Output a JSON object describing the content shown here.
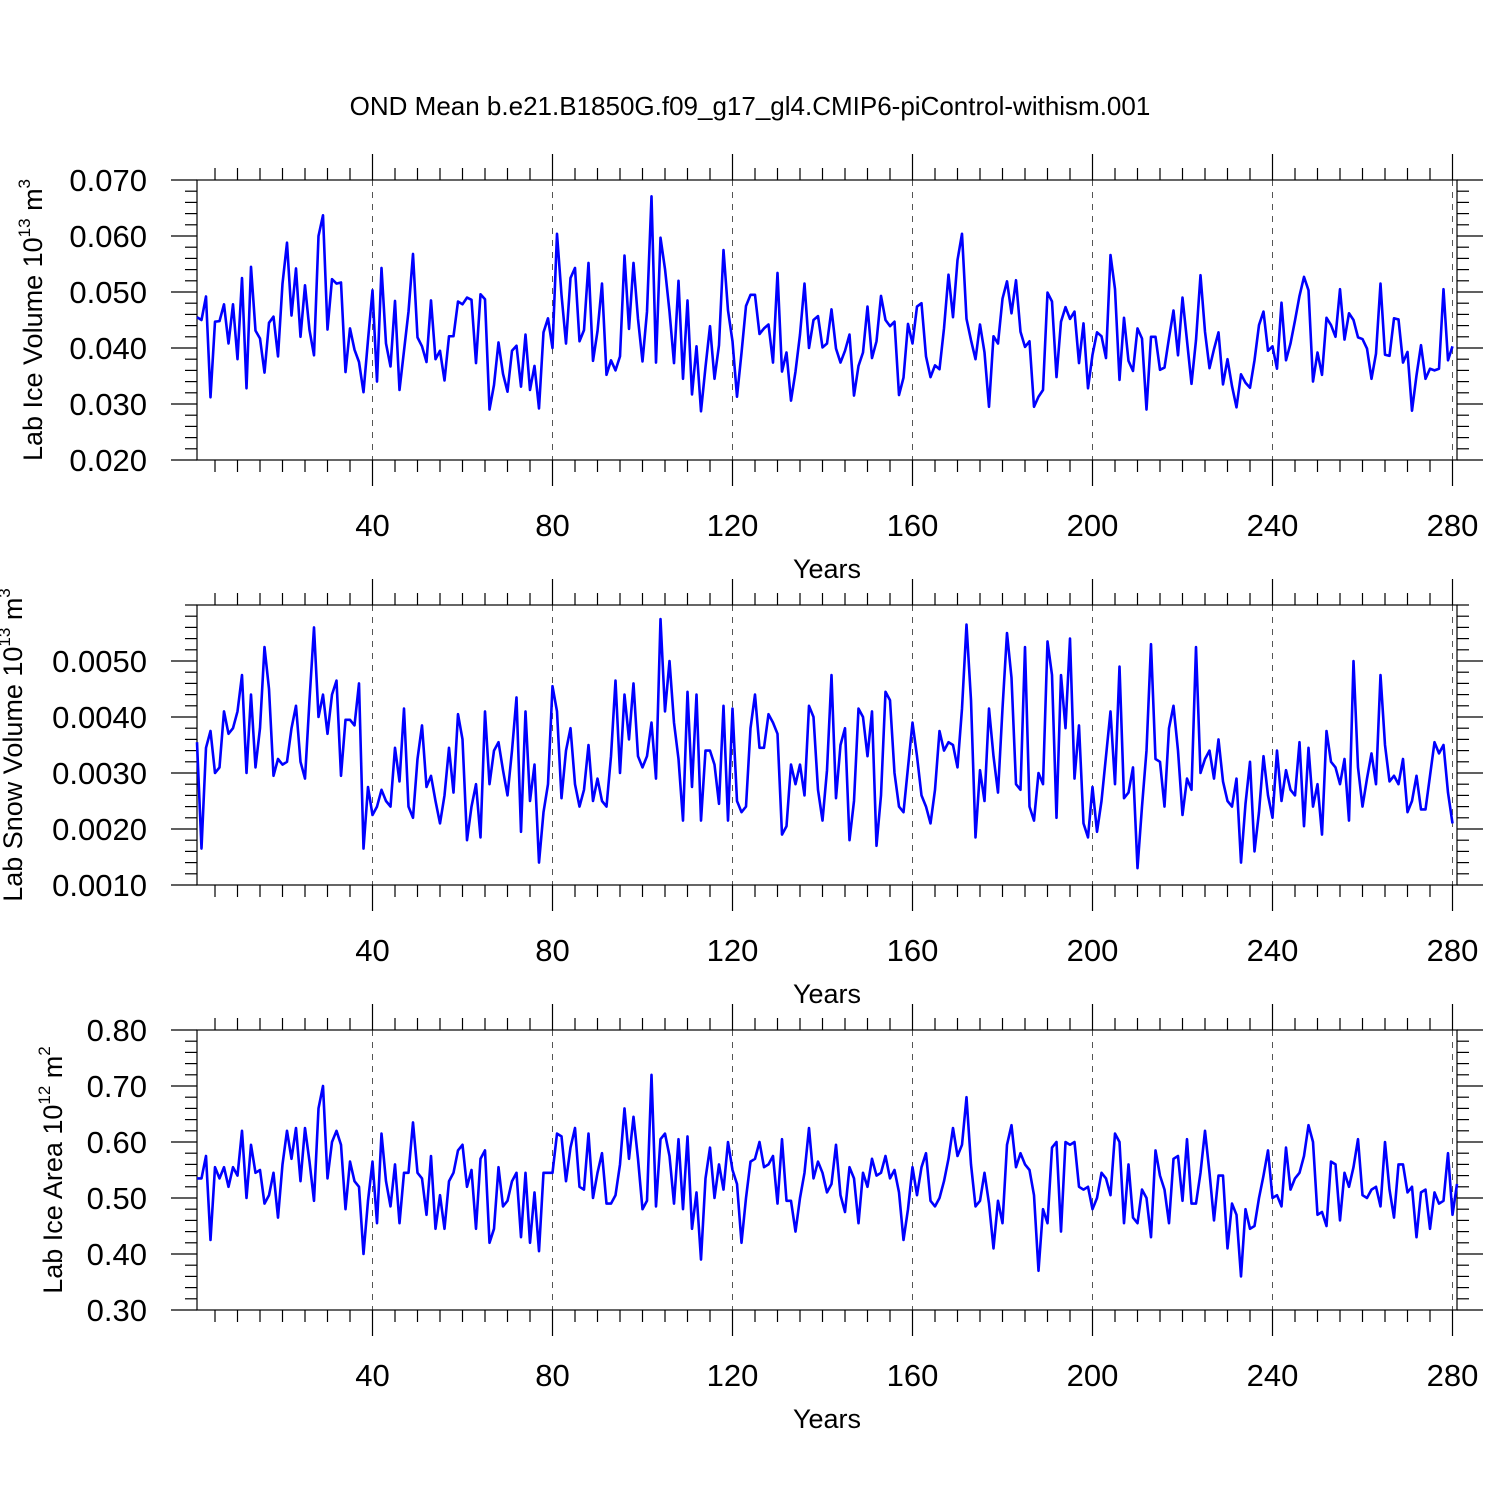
{
  "title": "OND Mean b.e21.B1850G.f09_g17_gl4.CMIP6-piControl-withism.001",
  "colors": {
    "series": "#0000ff",
    "grid": "#555555",
    "axis": "#000000"
  },
  "chart_data": [
    {
      "type": "line",
      "xlabel": "Years",
      "ylabel_main": "Lab Ice Volume 10",
      "ylabel_exp": "13",
      "ylabel_unit": " m",
      "ylabel_unit_exp": "3",
      "xlim": [
        1,
        281
      ],
      "ylim": [
        0.02,
        0.07
      ],
      "xticks": [
        40,
        80,
        120,
        160,
        200,
        240,
        280
      ],
      "xtick_labels": [
        "40",
        "80",
        "120",
        "160",
        "200",
        "240",
        "280"
      ],
      "yticks": [
        0.02,
        0.03,
        0.04,
        0.05,
        0.06,
        0.07
      ],
      "ytick_labels": [
        "0.020",
        "0.030",
        "0.040",
        "0.050",
        "0.060",
        "0.070"
      ],
      "x_start": 1,
      "values": [
        0.0455,
        0.045,
        0.0492,
        0.0312,
        0.0447,
        0.0448,
        0.0478,
        0.0408,
        0.0478,
        0.038,
        0.0525,
        0.0328,
        0.0545,
        0.0431,
        0.0417,
        0.0356,
        0.0445,
        0.0456,
        0.0385,
        0.0515,
        0.0588,
        0.0458,
        0.0542,
        0.042,
        0.0512,
        0.0432,
        0.0387,
        0.06,
        0.0637,
        0.0433,
        0.0523,
        0.0515,
        0.0517,
        0.0357,
        0.0435,
        0.0397,
        0.0375,
        0.0321,
        0.0414,
        0.0503,
        0.034,
        0.0543,
        0.0408,
        0.0367,
        0.0484,
        0.0325,
        0.0395,
        0.0465,
        0.0568,
        0.0419,
        0.0403,
        0.0375,
        0.0485,
        0.038,
        0.0395,
        0.0342,
        0.0421,
        0.0421,
        0.0483,
        0.0478,
        0.049,
        0.0486,
        0.0373,
        0.0496,
        0.0487,
        0.029,
        0.0334,
        0.041,
        0.0354,
        0.0322,
        0.0395,
        0.0404,
        0.0331,
        0.0424,
        0.0325,
        0.0368,
        0.0292,
        0.0428,
        0.0453,
        0.04,
        0.0604,
        0.0495,
        0.0408,
        0.0525,
        0.0543,
        0.0412,
        0.0432,
        0.0552,
        0.0377,
        0.043,
        0.0515,
        0.0352,
        0.0378,
        0.036,
        0.0385,
        0.0565,
        0.0434,
        0.0552,
        0.0452,
        0.0376,
        0.0465,
        0.0671,
        0.0374,
        0.0597,
        0.0541,
        0.0465,
        0.0373,
        0.052,
        0.0345,
        0.0485,
        0.0317,
        0.0403,
        0.0287,
        0.0366,
        0.0439,
        0.0345,
        0.0405,
        0.0575,
        0.0467,
        0.0412,
        0.0313,
        0.0391,
        0.0475,
        0.0495,
        0.0495,
        0.0425,
        0.0435,
        0.0442,
        0.0374,
        0.0534,
        0.0358,
        0.0392,
        0.0306,
        0.0358,
        0.0424,
        0.0515,
        0.04,
        0.045,
        0.0457,
        0.0401,
        0.0408,
        0.0469,
        0.0399,
        0.0374,
        0.0395,
        0.0424,
        0.0315,
        0.0368,
        0.0392,
        0.0474,
        0.0382,
        0.0412,
        0.0493,
        0.045,
        0.0439,
        0.0447,
        0.0316,
        0.0347,
        0.0443,
        0.0408,
        0.0474,
        0.048,
        0.0385,
        0.0348,
        0.0369,
        0.0362,
        0.0435,
        0.0531,
        0.0455,
        0.0557,
        0.0604,
        0.0452,
        0.0414,
        0.038,
        0.0442,
        0.0392,
        0.0295,
        0.0421,
        0.0408,
        0.0488,
        0.0519,
        0.0462,
        0.0521,
        0.0429,
        0.0402,
        0.0412,
        0.0295,
        0.0313,
        0.0325,
        0.0499,
        0.0483,
        0.0348,
        0.0447,
        0.0473,
        0.0452,
        0.0465,
        0.0373,
        0.0444,
        0.0328,
        0.0388,
        0.0428,
        0.0421,
        0.0382,
        0.0566,
        0.0505,
        0.0343,
        0.0454,
        0.0377,
        0.0359,
        0.0435,
        0.0417,
        0.029,
        0.042,
        0.042,
        0.0361,
        0.0365,
        0.0418,
        0.0467,
        0.0387,
        0.049,
        0.0413,
        0.0336,
        0.0414,
        0.053,
        0.0429,
        0.0364,
        0.0398,
        0.0428,
        0.0335,
        0.038,
        0.0332,
        0.0294,
        0.0353,
        0.0338,
        0.0329,
        0.0378,
        0.0441,
        0.0465,
        0.0395,
        0.0403,
        0.0363,
        0.0481,
        0.0378,
        0.0408,
        0.0449,
        0.0493,
        0.0527,
        0.0503,
        0.034,
        0.0392,
        0.0352,
        0.0454,
        0.0441,
        0.042,
        0.0505,
        0.0415,
        0.0462,
        0.045,
        0.0419,
        0.0416,
        0.0399,
        0.0345,
        0.039,
        0.0515,
        0.0388,
        0.0386,
        0.0453,
        0.0451,
        0.0374,
        0.0393,
        0.0288,
        0.0351,
        0.0405,
        0.0345,
        0.0363,
        0.036,
        0.0363,
        0.0505,
        0.0378,
        0.0403
      ]
    },
    {
      "type": "line",
      "xlabel": "Years",
      "ylabel_main": "Lab Snow Volume 10",
      "ylabel_exp": "13",
      "ylabel_unit": " m",
      "ylabel_unit_exp": "3",
      "xlim": [
        1,
        281
      ],
      "ylim": [
        0.001,
        0.006
      ],
      "xticks": [
        40,
        80,
        120,
        160,
        200,
        240,
        280
      ],
      "xtick_labels": [
        "40",
        "80",
        "120",
        "160",
        "200",
        "240",
        "280"
      ],
      "yticks": [
        0.001,
        0.002,
        0.003,
        0.004,
        0.005
      ],
      "ytick_labels": [
        "0.0010",
        "0.0020",
        "0.0030",
        "0.0040",
        "0.0050"
      ],
      "x_start": 1,
      "values": [
        0.00355,
        0.00165,
        0.00345,
        0.00375,
        0.003,
        0.0031,
        0.0041,
        0.0037,
        0.0038,
        0.0041,
        0.00475,
        0.003,
        0.0044,
        0.0031,
        0.0038,
        0.00525,
        0.0045,
        0.00295,
        0.00325,
        0.00315,
        0.0032,
        0.0038,
        0.0042,
        0.0032,
        0.0029,
        0.0043,
        0.0056,
        0.004,
        0.0044,
        0.0037,
        0.0044,
        0.00465,
        0.00295,
        0.00395,
        0.00395,
        0.00385,
        0.0046,
        0.00165,
        0.00275,
        0.00225,
        0.0024,
        0.0027,
        0.0025,
        0.0024,
        0.00345,
        0.00285,
        0.00415,
        0.0024,
        0.0022,
        0.00325,
        0.00385,
        0.00275,
        0.00295,
        0.0025,
        0.0021,
        0.0026,
        0.00345,
        0.00265,
        0.00405,
        0.0036,
        0.0018,
        0.0024,
        0.0028,
        0.00185,
        0.0041,
        0.0028,
        0.0034,
        0.00355,
        0.00305,
        0.0026,
        0.0034,
        0.00435,
        0.00195,
        0.0041,
        0.0025,
        0.00315,
        0.0014,
        0.0023,
        0.0028,
        0.00455,
        0.0041,
        0.00255,
        0.0034,
        0.0038,
        0.0028,
        0.0024,
        0.0027,
        0.0035,
        0.0025,
        0.0029,
        0.0025,
        0.0024,
        0.0033,
        0.00465,
        0.003,
        0.0044,
        0.0036,
        0.0046,
        0.0033,
        0.0031,
        0.0033,
        0.0039,
        0.0029,
        0.00575,
        0.0041,
        0.005,
        0.0039,
        0.00325,
        0.00215,
        0.00445,
        0.00275,
        0.0044,
        0.00215,
        0.0034,
        0.0034,
        0.00315,
        0.00245,
        0.0042,
        0.00215,
        0.00415,
        0.0025,
        0.0023,
        0.0024,
        0.0038,
        0.0044,
        0.00345,
        0.00345,
        0.00405,
        0.0039,
        0.0037,
        0.0019,
        0.00205,
        0.00315,
        0.0028,
        0.00315,
        0.0026,
        0.0042,
        0.004,
        0.0027,
        0.00215,
        0.00305,
        0.00475,
        0.00255,
        0.0035,
        0.0038,
        0.0018,
        0.0025,
        0.00415,
        0.004,
        0.0033,
        0.0041,
        0.0017,
        0.0026,
        0.00445,
        0.0043,
        0.003,
        0.0024,
        0.0023,
        0.0031,
        0.0039,
        0.0033,
        0.0026,
        0.0024,
        0.0021,
        0.0027,
        0.00375,
        0.0034,
        0.00355,
        0.0035,
        0.0031,
        0.00415,
        0.00565,
        0.0043,
        0.00185,
        0.00305,
        0.0025,
        0.00415,
        0.0033,
        0.00265,
        0.00415,
        0.0055,
        0.0047,
        0.0028,
        0.0027,
        0.00525,
        0.0024,
        0.00215,
        0.003,
        0.0028,
        0.00535,
        0.00475,
        0.0022,
        0.00475,
        0.0038,
        0.0054,
        0.0029,
        0.00385,
        0.0021,
        0.00185,
        0.00275,
        0.00195,
        0.0025,
        0.0033,
        0.0041,
        0.0028,
        0.0049,
        0.00255,
        0.00265,
        0.0031,
        0.0013,
        0.0024,
        0.0034,
        0.0053,
        0.00325,
        0.0032,
        0.0024,
        0.0038,
        0.0042,
        0.0034,
        0.00225,
        0.0029,
        0.0027,
        0.00525,
        0.003,
        0.00325,
        0.0034,
        0.0029,
        0.0036,
        0.00285,
        0.0025,
        0.0024,
        0.0029,
        0.0014,
        0.00245,
        0.0032,
        0.0016,
        0.0023,
        0.0033,
        0.0026,
        0.0022,
        0.0034,
        0.0025,
        0.00305,
        0.0027,
        0.0026,
        0.00355,
        0.00205,
        0.00345,
        0.0024,
        0.0028,
        0.0019,
        0.00375,
        0.0032,
        0.0031,
        0.0028,
        0.00325,
        0.00215,
        0.005,
        0.0031,
        0.0024,
        0.0029,
        0.00335,
        0.0028,
        0.00475,
        0.0035,
        0.00285,
        0.00295,
        0.0028,
        0.00325,
        0.0023,
        0.0025,
        0.00295,
        0.00235,
        0.00235,
        0.00295,
        0.00355,
        0.00335,
        0.0035,
        0.00265,
        0.0021
      ]
    },
    {
      "type": "line",
      "xlabel": "Years",
      "ylabel_main": "Lab Ice Area 10",
      "ylabel_exp": "12",
      "ylabel_unit": " m",
      "ylabel_unit_exp": "2",
      "xlim": [
        1,
        281
      ],
      "ylim": [
        0.3,
        0.8
      ],
      "xticks": [
        40,
        80,
        120,
        160,
        200,
        240,
        280
      ],
      "xtick_labels": [
        "40",
        "80",
        "120",
        "160",
        "200",
        "240",
        "280"
      ],
      "yticks": [
        0.3,
        0.4,
        0.5,
        0.6,
        0.7,
        0.8
      ],
      "ytick_labels": [
        "0.30",
        "0.40",
        "0.50",
        "0.60",
        "0.70",
        "0.80"
      ],
      "x_start": 1,
      "values": [
        0.535,
        0.535,
        0.575,
        0.425,
        0.555,
        0.535,
        0.555,
        0.52,
        0.555,
        0.54,
        0.62,
        0.5,
        0.595,
        0.545,
        0.55,
        0.49,
        0.505,
        0.545,
        0.465,
        0.56,
        0.62,
        0.57,
        0.625,
        0.53,
        0.625,
        0.565,
        0.495,
        0.66,
        0.7,
        0.535,
        0.6,
        0.62,
        0.595,
        0.48,
        0.565,
        0.53,
        0.52,
        0.4,
        0.495,
        0.565,
        0.455,
        0.615,
        0.53,
        0.485,
        0.56,
        0.455,
        0.545,
        0.545,
        0.635,
        0.545,
        0.535,
        0.47,
        0.575,
        0.445,
        0.505,
        0.445,
        0.53,
        0.545,
        0.585,
        0.595,
        0.52,
        0.55,
        0.445,
        0.57,
        0.585,
        0.42,
        0.445,
        0.555,
        0.485,
        0.495,
        0.53,
        0.545,
        0.43,
        0.545,
        0.42,
        0.51,
        0.405,
        0.545,
        0.545,
        0.545,
        0.615,
        0.61,
        0.53,
        0.59,
        0.625,
        0.52,
        0.515,
        0.615,
        0.5,
        0.545,
        0.58,
        0.49,
        0.49,
        0.505,
        0.56,
        0.66,
        0.57,
        0.645,
        0.57,
        0.48,
        0.495,
        0.72,
        0.485,
        0.605,
        0.615,
        0.575,
        0.49,
        0.605,
        0.48,
        0.61,
        0.445,
        0.51,
        0.39,
        0.535,
        0.59,
        0.5,
        0.56,
        0.515,
        0.6,
        0.55,
        0.525,
        0.42,
        0.5,
        0.565,
        0.57,
        0.6,
        0.555,
        0.56,
        0.575,
        0.49,
        0.605,
        0.495,
        0.495,
        0.44,
        0.5,
        0.545,
        0.625,
        0.535,
        0.565,
        0.545,
        0.51,
        0.525,
        0.595,
        0.505,
        0.475,
        0.555,
        0.535,
        0.455,
        0.545,
        0.52,
        0.57,
        0.54,
        0.545,
        0.575,
        0.535,
        0.55,
        0.51,
        0.425,
        0.48,
        0.555,
        0.505,
        0.555,
        0.58,
        0.495,
        0.485,
        0.5,
        0.53,
        0.57,
        0.625,
        0.575,
        0.595,
        0.68,
        0.56,
        0.485,
        0.495,
        0.545,
        0.49,
        0.41,
        0.495,
        0.455,
        0.595,
        0.63,
        0.555,
        0.58,
        0.56,
        0.55,
        0.505,
        0.37,
        0.48,
        0.455,
        0.59,
        0.6,
        0.44,
        0.6,
        0.595,
        0.6,
        0.52,
        0.515,
        0.52,
        0.48,
        0.5,
        0.545,
        0.535,
        0.505,
        0.615,
        0.6,
        0.455,
        0.56,
        0.465,
        0.455,
        0.515,
        0.5,
        0.43,
        0.585,
        0.54,
        0.515,
        0.455,
        0.57,
        0.575,
        0.495,
        0.605,
        0.49,
        0.49,
        0.545,
        0.62,
        0.545,
        0.46,
        0.54,
        0.54,
        0.41,
        0.49,
        0.47,
        0.36,
        0.48,
        0.445,
        0.45,
        0.5,
        0.54,
        0.585,
        0.5,
        0.505,
        0.485,
        0.59,
        0.515,
        0.535,
        0.545,
        0.575,
        0.63,
        0.6,
        0.47,
        0.475,
        0.45,
        0.565,
        0.56,
        0.46,
        0.545,
        0.52,
        0.555,
        0.605,
        0.505,
        0.5,
        0.515,
        0.52,
        0.485,
        0.6,
        0.515,
        0.465,
        0.56,
        0.56,
        0.51,
        0.52,
        0.43,
        0.51,
        0.515,
        0.445,
        0.51,
        0.49,
        0.495,
        0.58,
        0.47,
        0.525
      ]
    }
  ]
}
